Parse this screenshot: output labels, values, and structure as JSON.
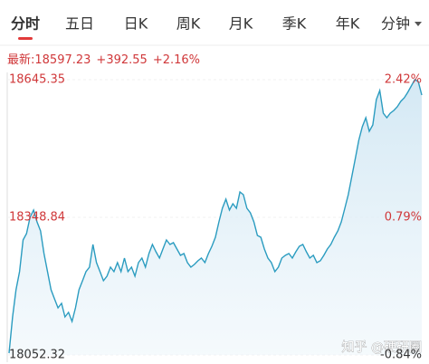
{
  "tabs": [
    "分时",
    "五日",
    "日K",
    "周K",
    "月K",
    "季K",
    "年K",
    "分钟"
  ],
  "quote": {
    "label": "最新:",
    "price": "18597.23",
    "change": "+392.55",
    "change_pct": "+2.16%"
  },
  "watermark": "知乎 @硬研圈",
  "chart_data": {
    "type": "line",
    "color": "#2b9cc0",
    "values": [
      18056.21,
      18134.24,
      18192.76,
      18231.78,
      18300.06,
      18313.71,
      18348.83,
      18364.43,
      18339.07,
      18319.57,
      18270.8,
      18231.78,
      18192.76,
      18173.26,
      18153.75,
      18163.5,
      18134.24,
      18143.99,
      18124.49,
      18153.75,
      18192.76,
      18212.27,
      18231.78,
      18241.53,
      18290.3,
      18251.29,
      18231.78,
      18212.27,
      18222.03,
      18241.53,
      18231.78,
      18251.29,
      18231.78,
      18261.04,
      18231.78,
      18241.53,
      18222.03,
      18251.29,
      18261.04,
      18241.53,
      18270.8,
      18290.3,
      18274.7,
      18261.04,
      18280.55,
      18300.06,
      18290.3,
      18294.21,
      18280.55,
      18266.89,
      18270.8,
      18251.29,
      18241.53,
      18247.39,
      18255.19,
      18261.04,
      18251.29,
      18270.8,
      18286.4,
      18305.91,
      18339.07,
      18368.34,
      18387.84,
      18364.43,
      18378.09,
      18368.34,
      18403.45,
      18397.6,
      18368.34,
      18358.58,
      18339.07,
      18309.81,
      18305.91,
      18280.55,
      18261.04,
      18251.29,
      18231.78,
      18241.53,
      18261.04,
      18266.89,
      18270.8,
      18261.04,
      18274.7,
      18286.4,
      18290.3,
      18274.7,
      18261.04,
      18266.89,
      18251.29,
      18255.19,
      18266.89,
      18280.55,
      18290.3,
      18305.91,
      18319.57,
      18339.07,
      18368.34,
      18397.6,
      18436.61,
      18475.63,
      18514.65,
      18543.91,
      18563.42,
      18534.15,
      18547.81,
      18602.43,
      18621.94,
      18573.17,
      18563.42,
      18573.17,
      18579.02,
      18586.83,
      18598.53,
      18606.33,
      18618.04,
      18631.69,
      18645.35,
      18641.45,
      18612.19
    ],
    "ylim": [
      18052.32,
      18645.35
    ],
    "yticks": [
      18052.32,
      18348.84,
      18645.35
    ],
    "y2lim": [
      -0.84,
      2.42
    ],
    "y2ticks": [
      {
        "value": -0.84,
        "label": "-0.84%"
      },
      {
        "value": 0.79,
        "label": "0.79%"
      },
      {
        "value": 2.42,
        "label": "2.42%"
      }
    ],
    "grid": true
  }
}
